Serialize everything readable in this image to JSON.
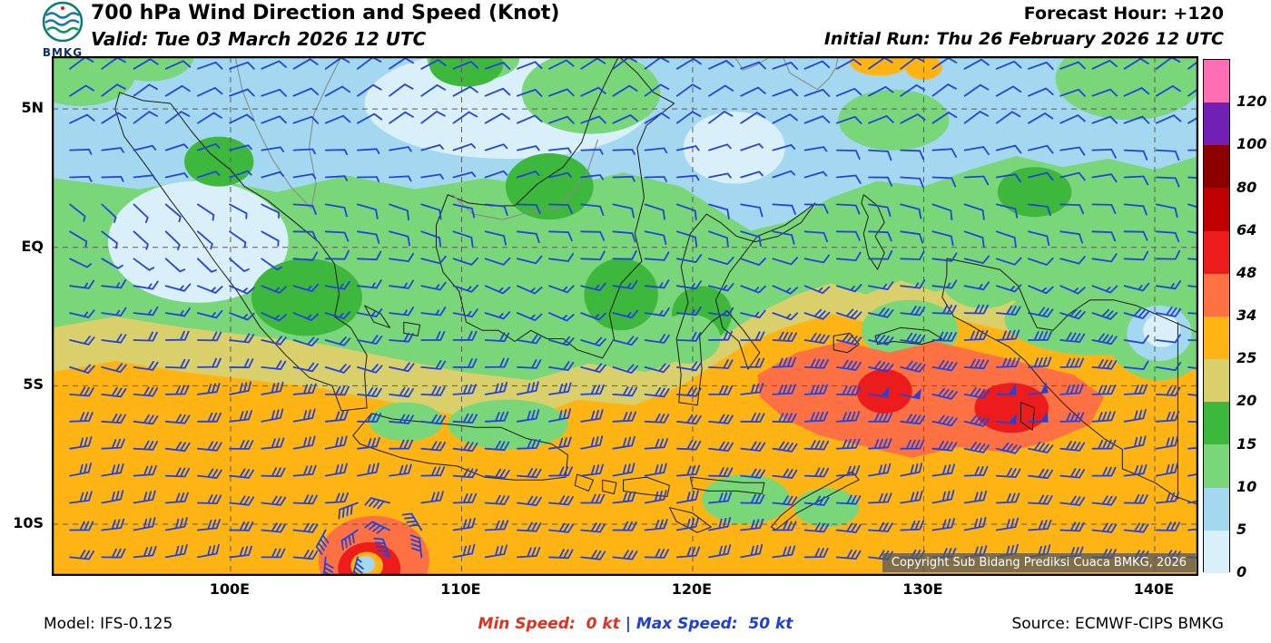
{
  "header": {
    "logo_text": "BMKG",
    "title": "700 hPa Wind Direction and Speed (Knot)",
    "valid": "Valid: Tue 03 March 2026 12 UTC",
    "forecast_hour": "Forecast Hour: +120",
    "initial_run": "Initial Run: Thu 26 February 2026 12 UTC"
  },
  "map": {
    "copyright": "Copyright Sub Bidang Prediksi Cuaca BMKG, 2026"
  },
  "axes": {
    "lat_ticks": [
      {
        "label": "5N",
        "value": 5
      },
      {
        "label": "EQ",
        "value": 0
      },
      {
        "label": "5S",
        "value": -5
      },
      {
        "label": "10S",
        "value": -10
      }
    ],
    "lon_ticks": [
      {
        "label": "100E",
        "value": 100
      },
      {
        "label": "110E",
        "value": 110
      },
      {
        "label": "120E",
        "value": 120
      },
      {
        "label": "130E",
        "value": 130
      },
      {
        "label": "140E",
        "value": 140
      }
    ]
  },
  "chart_data": {
    "type": "heatmap",
    "title": "700 hPa Wind Direction and Speed (Knot)",
    "units": "kt",
    "lon_range": [
      92.3,
      141.85
    ],
    "lat_range": [
      -11.84,
      6.87
    ],
    "levels": [
      0,
      5,
      10,
      15,
      20,
      25,
      34,
      48,
      64,
      80,
      100,
      120
    ],
    "colors": [
      "#D9EFFA",
      "#A3D8F0",
      "#79D679",
      "#3DB83D",
      "#D9CF6B",
      "#FFB414",
      "#FF7043",
      "#EC1C1C",
      "#C00000",
      "#8C0000",
      "#711FB4",
      "#FF6EB4"
    ],
    "min_speed_kt": 0,
    "max_speed_kt": 50,
    "barb_color": "#2343DC",
    "grid_color": "#5A5A5A",
    "coast_color": "#1B1B1B",
    "vortex": {
      "lon": 106.3,
      "lat": -11.4,
      "radius_deg": 2.9,
      "speed_kt": 40
    },
    "wind_rules": [
      {
        "lat": [
          -6.0,
          -4.4
        ],
        "lon": [
          126.6,
          129.8
        ],
        "dir": 95,
        "spd": 50
      },
      {
        "lat": [
          -6.6,
          -5.0
        ],
        "lon": [
          132.2,
          135.6
        ],
        "dir": 90,
        "spd": 50
      },
      {
        "lat": [
          -8.2,
          -3.2
        ],
        "lon": [
          122.6,
          138.6
        ],
        "dir": 95,
        "spd": 40
      },
      {
        "lat": [
          -3.2,
          -1.8
        ],
        "lon": [
          123.5,
          142.5
        ],
        "dir": 100,
        "spd": 30
      },
      {
        "lat": [
          -12.5,
          -4.4
        ],
        "lon": [
          91.5,
          142.5
        ],
        "dir": 88,
        "spd": 30
      },
      {
        "lat": [
          -4.4,
          -2.9
        ],
        "lon": [
          91.5,
          123.5
        ],
        "dir": 98,
        "spd": 20
      },
      {
        "lat": [
          -2.9,
          -0.9
        ],
        "lon": [
          91.5,
          142.5
        ],
        "dir": 105,
        "spd": 15
      },
      {
        "lat": [
          -0.9,
          1.8
        ],
        "lon": [
          91.5,
          101.5
        ],
        "dir": 125,
        "spd": 5
      },
      {
        "lat": [
          -0.9,
          1.8
        ],
        "lon": [
          101.5,
          142.5
        ],
        "dir": 100,
        "spd": 10
      },
      {
        "lat": [
          1.8,
          4.4
        ],
        "lon": [
          126.0,
          142.5
        ],
        "dir": 85,
        "spd": 10
      },
      {
        "lat": [
          1.8,
          4.4
        ],
        "lon": [
          91.5,
          126.0
        ],
        "dir": 80,
        "spd": 5
      },
      {
        "lat": [
          4.4,
          7.5
        ],
        "lon": [
          91.5,
          142.5
        ],
        "dir": 62,
        "spd": 10
      }
    ]
  },
  "footer": {
    "model": "Model: IFS-0.125",
    "min_label": "Min Speed:",
    "min_value": "0 kt",
    "separator": "|",
    "max_label": "Max Speed:",
    "max_value": "50 kt",
    "source": "Source: ECMWF-CIPS BMKG",
    "colors": {
      "min": "#E03020",
      "max": "#1F3FD8",
      "separator": "#1F3FD8"
    }
  }
}
